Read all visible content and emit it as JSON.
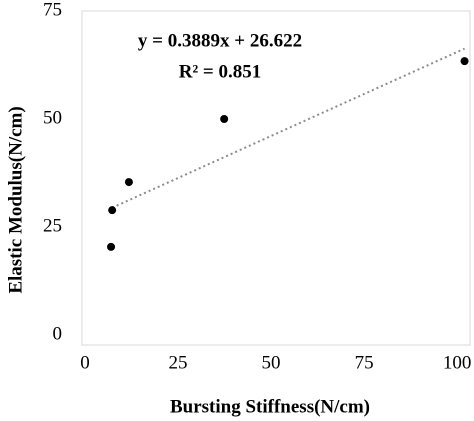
{
  "chart_data": {
    "type": "scatter",
    "x_label": "Bursting Stiffness(N/cm)",
    "y_label": "Elastic Modulus(N/cm)",
    "x": [
      7,
      7.3,
      11.8,
      37.4,
      102
    ],
    "values": [
      20.4,
      28.9,
      35.4,
      50,
      63.4
    ],
    "color": "#000000",
    "trendline": {
      "slope": 0.3889,
      "intercept": 26.622,
      "x_range": [
        7.3,
        102
      ],
      "color": "#8c8c8c",
      "equation": "y = 0.3889x + 26.622",
      "r_squared": "R² = 0.851"
    },
    "xlim": [
      0,
      104
    ],
    "xticks": [
      0,
      25,
      50,
      75,
      100
    ],
    "ylim": [
      0,
      75
    ],
    "yticks": [
      0,
      25,
      50,
      75
    ],
    "grid": false
  }
}
